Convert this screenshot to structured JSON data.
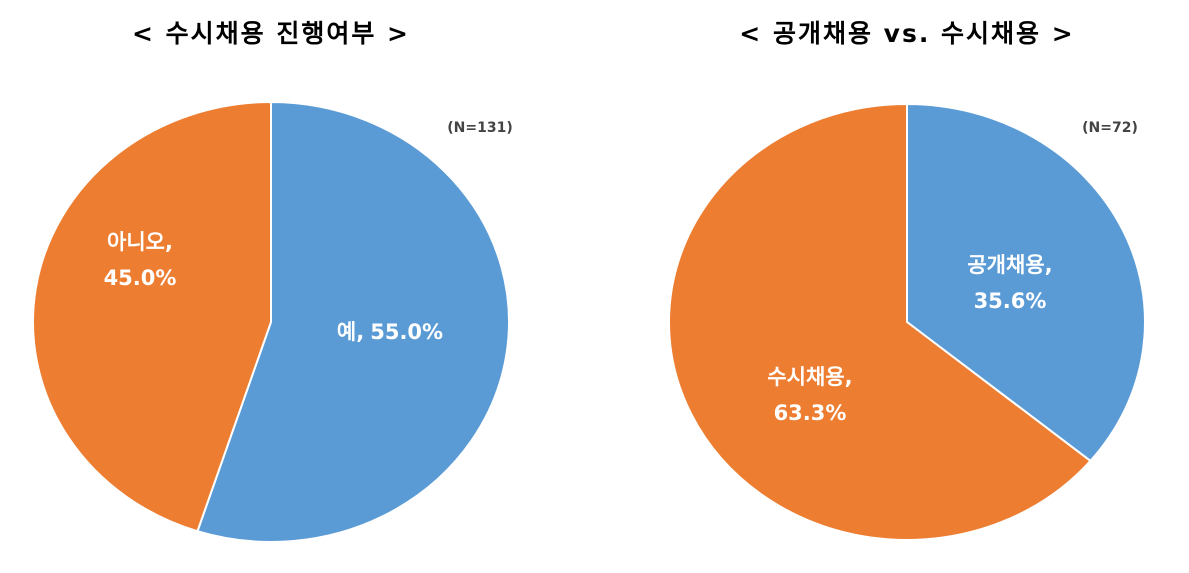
{
  "chart_data": [
    {
      "type": "pie",
      "title": "< 수시채용 진행여부 >",
      "note": "(N=131)",
      "categories": [
        "예,",
        "아니오,"
      ],
      "values": [
        55.0,
        45.0
      ],
      "value_labels": [
        "55.0%",
        "45.0%"
      ],
      "colors": [
        "#5b9bd5",
        "#ed7d31"
      ]
    },
    {
      "type": "pie",
      "title": "< 공개채용 vs. 수시채용 >",
      "note": "(N=72)",
      "categories": [
        "공개채용,",
        "수시채용,"
      ],
      "values": [
        35.6,
        63.3
      ],
      "value_labels": [
        "35.6%",
        "63.3%"
      ],
      "colors": [
        "#5b9bd5",
        "#ed7d31"
      ]
    }
  ]
}
